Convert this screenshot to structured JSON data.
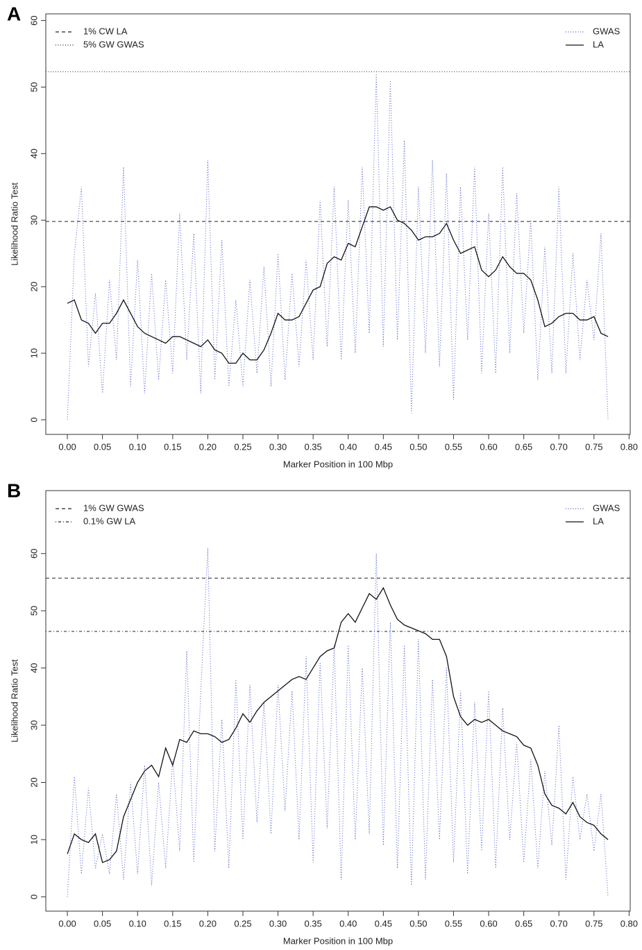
{
  "chart_data": [
    {
      "type": "line",
      "panel_label": "A",
      "x_label": "Marker Position in 100 Mbp",
      "y_label": "Likelihood Ratio Test",
      "xlim": [
        -0.0307,
        0.8016
      ],
      "ylim": [
        -2.2,
        61
      ],
      "xticks": [
        {
          "value": 0,
          "label": "0.00"
        },
        0.05,
        {
          "value": 0.1,
          "label": "0.10"
        },
        0.15,
        {
          "value": 0.2,
          "label": "0.20"
        },
        0.25,
        {
          "value": 0.3,
          "label": "0.30"
        },
        0.35,
        {
          "value": 0.4,
          "label": "0.40"
        },
        0.45,
        {
          "value": 0.5,
          "label": "0.50"
        },
        0.55,
        {
          "value": 0.6,
          "label": "0.60"
        },
        0.65,
        {
          "value": 0.7,
          "label": "0.70"
        },
        0.75,
        {
          "value": 0.8,
          "label": "0.80"
        }
      ],
      "yticks": [
        0,
        10,
        20,
        30,
        40,
        50,
        60
      ],
      "hlines": [
        {
          "name": "1% CW LA",
          "value": 29.8,
          "style": "dashed"
        },
        {
          "name": "5% GW GWAS",
          "value": 52.3,
          "style": "dotted"
        }
      ],
      "hlines_legend": "top-left",
      "legend": "top-right",
      "x": [
        0,
        0.01,
        0.02,
        0.03,
        0.04,
        0.05,
        0.06,
        0.07,
        0.08,
        0.09,
        0.1,
        0.11,
        0.12,
        0.13,
        0.14,
        0.15,
        0.16,
        0.17,
        0.18,
        0.19,
        0.2,
        0.21,
        0.22,
        0.23,
        0.24,
        0.25,
        0.26,
        0.27,
        0.28,
        0.29,
        0.3,
        0.31,
        0.32,
        0.33,
        0.34,
        0.35,
        0.36,
        0.37,
        0.38,
        0.39,
        0.4,
        0.41,
        0.42,
        0.43,
        0.44,
        0.45,
        0.46,
        0.47,
        0.48,
        0.49,
        0.5,
        0.51,
        0.52,
        0.53,
        0.54,
        0.55,
        0.56,
        0.57,
        0.58,
        0.59,
        0.6,
        0.61,
        0.62,
        0.63,
        0.64,
        0.65,
        0.66,
        0.67,
        0.68,
        0.69,
        0.7,
        0.71,
        0.72,
        0.73,
        0.74,
        0.75,
        0.76,
        0.77
      ],
      "series": [
        {
          "name": "GWAS",
          "color": "#4a56c8",
          "style": "dotted",
          "values": [
            0,
            25,
            35,
            8,
            19,
            4,
            21,
            9,
            38,
            5,
            24,
            4,
            22,
            6,
            21,
            7,
            31,
            9,
            28,
            4,
            39,
            6,
            27,
            5,
            18,
            5,
            21,
            7,
            23,
            5,
            25,
            6,
            22,
            8,
            24,
            9,
            33,
            11,
            35,
            9,
            33,
            10,
            38,
            13,
            52,
            11,
            51,
            12,
            42,
            1,
            35,
            10,
            39,
            8,
            37,
            3,
            35,
            12,
            38,
            7,
            31,
            7,
            38,
            10,
            34,
            13,
            30,
            6,
            26,
            7,
            35,
            7,
            25,
            9,
            21,
            12,
            28,
            0
          ]
        },
        {
          "name": "LA",
          "color": "#111111",
          "style": "solid",
          "values": [
            17.5,
            18,
            15,
            14.5,
            13,
            14.5,
            14.5,
            16,
            18,
            16,
            14,
            13,
            12.5,
            12,
            11.5,
            12.5,
            12.5,
            12,
            11.5,
            11,
            12,
            10.5,
            10,
            8.5,
            8.5,
            10,
            9,
            9,
            10.5,
            13,
            16,
            15,
            15,
            15.5,
            17.5,
            19.5,
            20,
            23.5,
            24.5,
            24,
            26.5,
            26,
            29,
            32,
            32,
            31.5,
            32,
            30,
            29.5,
            28.5,
            27,
            27.5,
            27.5,
            28,
            29.5,
            27,
            25,
            25.5,
            26,
            22.5,
            21.5,
            22.5,
            24.5,
            23,
            22,
            22,
            21,
            18,
            14,
            14.5,
            15.5,
            16,
            16,
            15,
            15,
            15.5,
            13,
            12.5
          ]
        }
      ]
    },
    {
      "type": "line",
      "panel_label": "B",
      "x_label": "Marker Position in 100 Mbp",
      "y_label": "Likelihood Ratio Test",
      "xlim": [
        -0.0307,
        0.8016
      ],
      "ylim": [
        -2.5,
        71
      ],
      "xticks": [
        {
          "value": 0,
          "label": "0.00"
        },
        0.05,
        {
          "value": 0.1,
          "label": "0.10"
        },
        0.15,
        {
          "value": 0.2,
          "label": "0.20"
        },
        0.25,
        {
          "value": 0.3,
          "label": "0.30"
        },
        0.35,
        {
          "value": 0.4,
          "label": "0.40"
        },
        0.45,
        {
          "value": 0.5,
          "label": "0.50"
        },
        0.55,
        {
          "value": 0.6,
          "label": "0.60"
        },
        0.65,
        {
          "value": 0.7,
          "label": "0.70"
        },
        0.75,
        {
          "value": 0.8,
          "label": "0.80"
        }
      ],
      "yticks": [
        0,
        10,
        20,
        30,
        40,
        50,
        60
      ],
      "hlines": [
        {
          "name": "1% GW GWAS",
          "value": 55.7,
          "style": "dashed"
        },
        {
          "name": "0.1% GW LA",
          "value": 46.4,
          "style": "dotdash"
        }
      ],
      "hlines_legend": "top-left",
      "legend": "top-right",
      "x": [
        0,
        0.01,
        0.02,
        0.03,
        0.04,
        0.05,
        0.06,
        0.07,
        0.08,
        0.09,
        0.1,
        0.11,
        0.12,
        0.13,
        0.14,
        0.15,
        0.16,
        0.17,
        0.18,
        0.19,
        0.2,
        0.21,
        0.22,
        0.23,
        0.24,
        0.25,
        0.26,
        0.27,
        0.28,
        0.29,
        0.3,
        0.31,
        0.32,
        0.33,
        0.34,
        0.35,
        0.36,
        0.37,
        0.38,
        0.39,
        0.4,
        0.41,
        0.42,
        0.43,
        0.44,
        0.45,
        0.46,
        0.47,
        0.48,
        0.49,
        0.5,
        0.51,
        0.52,
        0.53,
        0.54,
        0.55,
        0.56,
        0.57,
        0.58,
        0.59,
        0.6,
        0.61,
        0.62,
        0.63,
        0.64,
        0.65,
        0.66,
        0.67,
        0.68,
        0.69,
        0.7,
        0.71,
        0.72,
        0.73,
        0.74,
        0.75,
        0.76,
        0.77
      ],
      "series": [
        {
          "name": "GWAS",
          "color": "#4a56c8",
          "style": "dotted",
          "values": [
            0,
            21,
            4,
            19,
            5,
            11,
            4,
            18,
            3,
            20,
            4,
            23,
            2,
            20,
            5,
            24,
            8,
            43,
            6,
            36,
            61,
            8,
            31,
            5,
            38,
            10,
            37,
            13,
            34,
            11,
            37,
            15,
            36,
            10,
            42,
            6,
            41,
            12,
            44,
            3,
            44,
            10,
            40,
            11,
            60,
            9,
            48,
            5,
            44,
            2,
            45,
            3,
            38,
            10,
            40,
            6,
            36,
            4,
            34,
            8,
            36,
            5,
            33,
            10,
            27,
            6,
            24,
            5,
            22,
            9,
            30,
            3,
            21,
            10,
            18,
            8,
            18,
            0
          ]
        },
        {
          "name": "LA",
          "color": "#111111",
          "style": "solid",
          "values": [
            7.5,
            11,
            10,
            9.5,
            11,
            6,
            6.5,
            8,
            14,
            17,
            20,
            22,
            23,
            21,
            26,
            23,
            27.5,
            27,
            29,
            28.5,
            28.5,
            28,
            27,
            27.5,
            29.5,
            32,
            30.5,
            32.5,
            34,
            35,
            36,
            37,
            38,
            38.5,
            38,
            40,
            42,
            43,
            43.5,
            48,
            49.5,
            48,
            50.5,
            53,
            52,
            54,
            51,
            48.5,
            47.5,
            47,
            46.5,
            46,
            45,
            45,
            42,
            35,
            31.5,
            30,
            31,
            30.5,
            31,
            30,
            29,
            28.5,
            28,
            26.5,
            26,
            23,
            18,
            16,
            15.5,
            14.5,
            16.5,
            14,
            13,
            12.5,
            11,
            10
          ]
        }
      ]
    }
  ]
}
